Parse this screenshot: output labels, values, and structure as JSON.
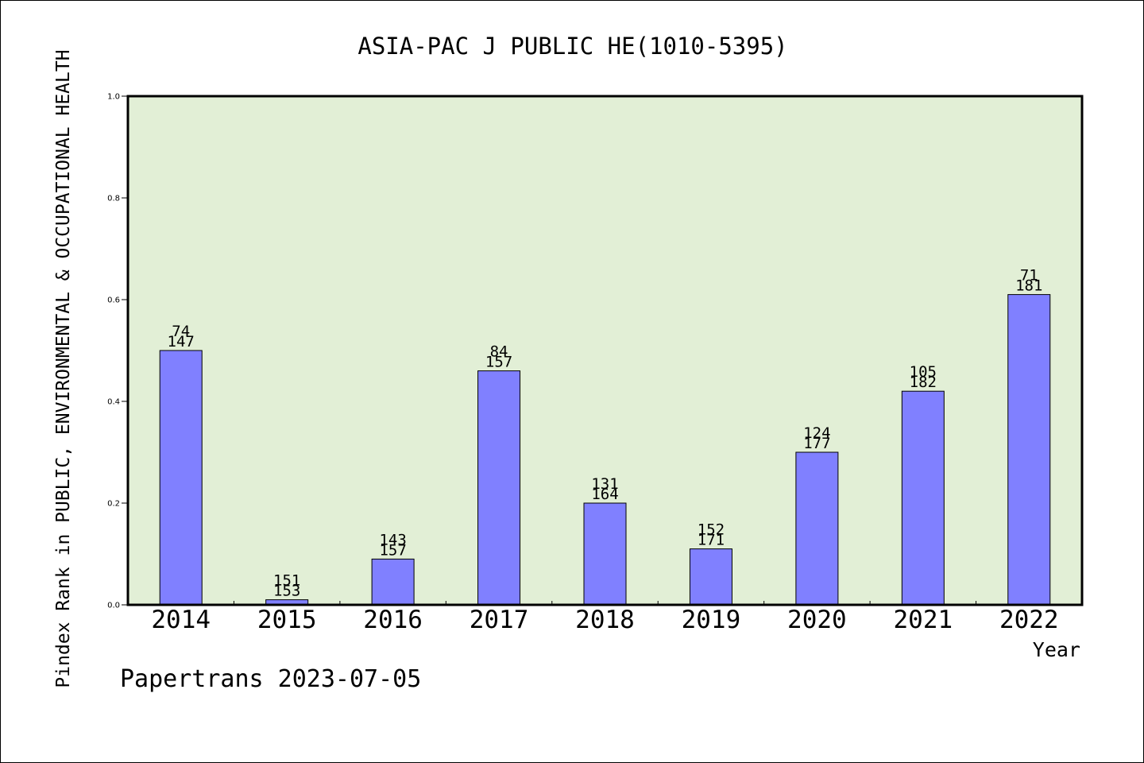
{
  "chart_data": {
    "type": "bar",
    "title": "ASIA-PAC J PUBLIC HE(1010-5395)",
    "xlabel": "Year",
    "ylabel": "Pindex Rank in PUBLIC, ENVIRONMENTAL & OCCUPATIONAL HEALTH",
    "ylim": [
      0,
      1.0
    ],
    "yticks": [
      "0.0",
      "0.2",
      "0.4",
      "0.6",
      "0.8",
      "1.0"
    ],
    "categories": [
      "2014",
      "2015",
      "2016",
      "2017",
      "2018",
      "2019",
      "2020",
      "2021",
      "2022"
    ],
    "values": [
      0.5,
      0.01,
      0.09,
      0.46,
      0.2,
      0.11,
      0.3,
      0.42,
      0.61
    ],
    "rank_labels": [
      "74",
      "151",
      "143",
      "84",
      "131",
      "152",
      "124",
      "105",
      "71"
    ],
    "total_labels": [
      "147",
      "153",
      "157",
      "157",
      "164",
      "171",
      "177",
      "182",
      "181"
    ],
    "grid": false,
    "legend": "none",
    "colors": {
      "plot_background": "#e2efd6",
      "bar_fill": "#8080ff",
      "bar_stroke": "#000000",
      "axis": "#000000"
    }
  },
  "footer": {
    "text": "Papertrans 2023-07-05"
  }
}
